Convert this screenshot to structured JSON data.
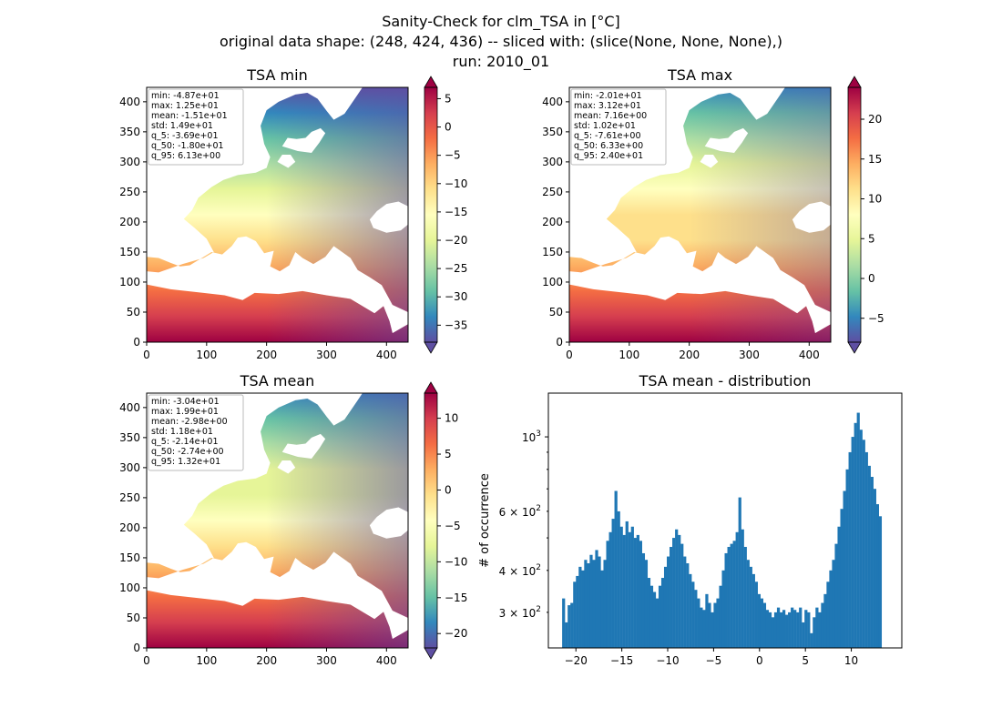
{
  "figure": {
    "title_lines": [
      "Sanity-Check for clm_TSA in [°C]",
      "original data shape: (248, 424, 436) -- sliced with: (slice(None, None, None),)",
      "run: 2010_01"
    ]
  },
  "colors": {
    "histogram_bar": "#1f77b4",
    "colormap": "Spectral_r",
    "colormap_stops": [
      "#5e4fa2",
      "#3288bd",
      "#66c2a5",
      "#abdda4",
      "#e6f598",
      "#ffffbf",
      "#fee08b",
      "#fdae61",
      "#f46d43",
      "#d53e4f",
      "#9e0142"
    ]
  },
  "chart_data": [
    {
      "type": "heatmap",
      "title": "TSA min",
      "xlim": [
        0,
        436
      ],
      "ylim": [
        0,
        424
      ],
      "xticks": [
        0,
        100,
        200,
        300,
        400
      ],
      "yticks": [
        0,
        50,
        100,
        150,
        200,
        250,
        300,
        350,
        400
      ],
      "colorbar": {
        "range": [
          -38,
          7
        ],
        "ticks": [
          5,
          0,
          -5,
          -10,
          -15,
          -20,
          -25,
          -30,
          -35
        ],
        "extend": "both"
      },
      "stats": [
        "min: -4.87e+01",
        "max: 1.25e+01",
        "mean: -1.51e+01",
        "std: 1.49e+01",
        "q_5: -3.69e+01",
        "q_50: -1.80e+01",
        "q_95: 6.13e+00"
      ]
    },
    {
      "type": "heatmap",
      "title": "TSA max",
      "xlim": [
        0,
        436
      ],
      "ylim": [
        0,
        424
      ],
      "xticks": [
        0,
        100,
        200,
        300,
        400
      ],
      "yticks": [
        0,
        50,
        100,
        150,
        200,
        250,
        300,
        350,
        400
      ],
      "colorbar": {
        "range": [
          -8,
          24
        ],
        "ticks": [
          20,
          15,
          10,
          5,
          0,
          -5
        ],
        "extend": "both"
      },
      "stats": [
        "min: -2.01e+01",
        "max: 3.12e+01",
        "mean: 7.16e+00",
        "std: 1.02e+01",
        "q_5: -7.61e+00",
        "q_50: 6.33e+00",
        "q_95: 2.40e+01"
      ]
    },
    {
      "type": "heatmap",
      "title": "TSA mean",
      "xlim": [
        0,
        436
      ],
      "ylim": [
        0,
        424
      ],
      "xticks": [
        0,
        100,
        200,
        300,
        400
      ],
      "yticks": [
        0,
        50,
        100,
        150,
        200,
        250,
        300,
        350,
        400
      ],
      "colorbar": {
        "range": [
          -22,
          13.5
        ],
        "ticks": [
          10,
          5,
          0,
          -5,
          -10,
          -15,
          -20
        ],
        "extend": "both"
      },
      "stats": [
        "min: -3.04e+01",
        "max: 1.99e+01",
        "mean: -2.98e+00",
        "std: 1.18e+01",
        "q_5: -2.14e+01",
        "q_50: -2.74e+00",
        "q_95: 1.32e+01"
      ]
    },
    {
      "type": "bar",
      "title": "TSA mean - distribution",
      "ylabel": "# of occurrence",
      "yscale": "log",
      "xlim": [
        -23,
        15.5
      ],
      "ylim": [
        235,
        1350
      ],
      "xticks": [
        -20,
        -15,
        -10,
        -5,
        0,
        5,
        10
      ],
      "yticks_major": [
        {
          "value": 1000,
          "base": "10",
          "exp": "3"
        }
      ],
      "yticks_minor": [
        {
          "value": 300,
          "mant": "3",
          "base": "10",
          "exp": "2"
        },
        {
          "value": 400,
          "mant": "4",
          "base": "10",
          "exp": "2"
        },
        {
          "value": 600,
          "mant": "6",
          "base": "10",
          "exp": "2"
        }
      ],
      "bins": [
        [
          -21.5,
          330
        ],
        [
          -21.2,
          280
        ],
        [
          -20.9,
          315
        ],
        [
          -20.6,
          320
        ],
        [
          -20.3,
          370
        ],
        [
          -20.0,
          385
        ],
        [
          -19.7,
          410
        ],
        [
          -19.4,
          400
        ],
        [
          -19.1,
          430
        ],
        [
          -18.8,
          420
        ],
        [
          -18.5,
          445
        ],
        [
          -18.2,
          430
        ],
        [
          -17.9,
          460
        ],
        [
          -17.6,
          440
        ],
        [
          -17.3,
          400
        ],
        [
          -17.0,
          430
        ],
        [
          -16.7,
          490
        ],
        [
          -16.4,
          520
        ],
        [
          -16.1,
          570
        ],
        [
          -15.8,
          690
        ],
        [
          -15.5,
          600
        ],
        [
          -15.2,
          540
        ],
        [
          -14.9,
          510
        ],
        [
          -14.6,
          560
        ],
        [
          -14.3,
          520
        ],
        [
          -14.0,
          540
        ],
        [
          -13.7,
          500
        ],
        [
          -13.4,
          510
        ],
        [
          -13.1,
          490
        ],
        [
          -12.8,
          450
        ],
        [
          -12.5,
          430
        ],
        [
          -12.2,
          380
        ],
        [
          -11.9,
          360
        ],
        [
          -11.6,
          345
        ],
        [
          -11.3,
          330
        ],
        [
          -11.0,
          360
        ],
        [
          -10.7,
          380
        ],
        [
          -10.4,
          410
        ],
        [
          -10.1,
          440
        ],
        [
          -9.8,
          470
        ],
        [
          -9.5,
          500
        ],
        [
          -9.2,
          530
        ],
        [
          -8.9,
          510
        ],
        [
          -8.6,
          480
        ],
        [
          -8.3,
          440
        ],
        [
          -8.0,
          420
        ],
        [
          -7.7,
          390
        ],
        [
          -7.4,
          370
        ],
        [
          -7.1,
          350
        ],
        [
          -6.8,
          330
        ],
        [
          -6.5,
          310
        ],
        [
          -6.2,
          305
        ],
        [
          -5.9,
          340
        ],
        [
          -5.6,
          320
        ],
        [
          -5.3,
          300
        ],
        [
          -5.0,
          320
        ],
        [
          -4.7,
          330
        ],
        [
          -4.4,
          360
        ],
        [
          -4.1,
          400
        ],
        [
          -3.8,
          450
        ],
        [
          -3.5,
          470
        ],
        [
          -3.2,
          480
        ],
        [
          -2.9,
          490
        ],
        [
          -2.6,
          520
        ],
        [
          -2.3,
          660
        ],
        [
          -2.0,
          530
        ],
        [
          -1.7,
          470
        ],
        [
          -1.4,
          430
        ],
        [
          -1.1,
          410
        ],
        [
          -0.8,
          390
        ],
        [
          -0.5,
          370
        ],
        [
          -0.2,
          340
        ],
        [
          0.1,
          330
        ],
        [
          0.4,
          320
        ],
        [
          0.7,
          305
        ],
        [
          1.0,
          300
        ],
        [
          1.3,
          290
        ],
        [
          1.6,
          300
        ],
        [
          1.9,
          310
        ],
        [
          2.2,
          300
        ],
        [
          2.5,
          305
        ],
        [
          2.8,
          295
        ],
        [
          3.1,
          300
        ],
        [
          3.4,
          310
        ],
        [
          3.7,
          305
        ],
        [
          4.0,
          300
        ],
        [
          4.3,
          310
        ],
        [
          4.6,
          280
        ],
        [
          4.9,
          305
        ],
        [
          5.2,
          300
        ],
        [
          5.5,
          260
        ],
        [
          5.8,
          290
        ],
        [
          6.1,
          310
        ],
        [
          6.4,
          300
        ],
        [
          6.7,
          320
        ],
        [
          7.0,
          340
        ],
        [
          7.3,
          370
        ],
        [
          7.6,
          400
        ],
        [
          7.9,
          430
        ],
        [
          8.2,
          480
        ],
        [
          8.5,
          540
        ],
        [
          8.8,
          610
        ],
        [
          9.1,
          690
        ],
        [
          9.4,
          800
        ],
        [
          9.7,
          900
        ],
        [
          10.0,
          1000
        ],
        [
          10.3,
          1100
        ],
        [
          10.6,
          1180
        ],
        [
          10.9,
          1050
        ],
        [
          11.2,
          980
        ],
        [
          11.5,
          900
        ],
        [
          11.8,
          820
        ],
        [
          12.1,
          760
        ],
        [
          12.4,
          700
        ],
        [
          12.7,
          630
        ],
        [
          13.0,
          580
        ]
      ]
    }
  ]
}
